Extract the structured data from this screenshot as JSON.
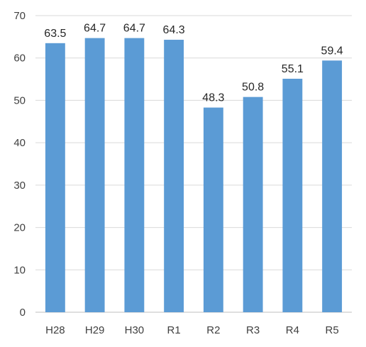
{
  "chart_data": {
    "type": "bar",
    "title": "",
    "xlabel": "",
    "ylabel": "",
    "categories": [
      "H28",
      "H29",
      "H30",
      "R1",
      "R2",
      "R3",
      "R4",
      "R5"
    ],
    "values": [
      63.5,
      64.7,
      64.7,
      64.3,
      48.3,
      50.8,
      55.1,
      59.4
    ],
    "data_labels": [
      "63.5",
      "64.7",
      "64.7",
      "64.3",
      "48.3",
      "50.8",
      "55.1",
      "59.4"
    ],
    "ylim": [
      0,
      70
    ],
    "yticks": [
      0,
      10,
      20,
      30,
      40,
      50,
      60,
      70
    ],
    "grid": true,
    "legend": "none",
    "colors": {
      "bar": "#5b9bd5",
      "grid": "#d9d9d9",
      "axis": "#bfbfbf",
      "text": "#404040"
    }
  }
}
